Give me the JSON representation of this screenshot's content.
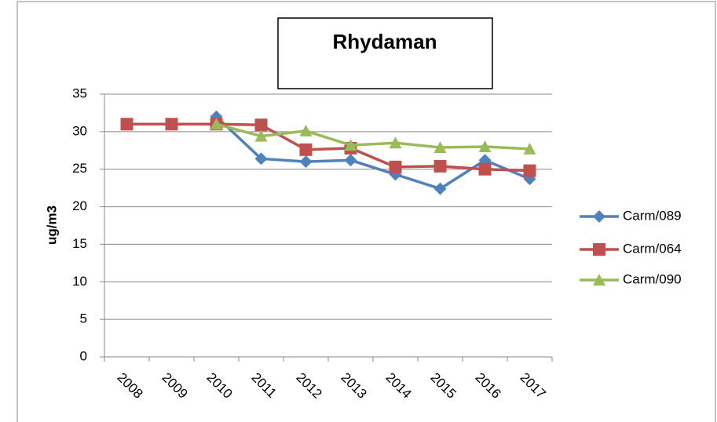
{
  "chart_data": {
    "type": "line",
    "title": "Rhydaman",
    "y_label": "ug/m3",
    "categories": [
      "2008",
      "2009",
      "2010",
      "2011",
      "2012",
      "2013",
      "2014",
      "2015",
      "2016",
      "2017"
    ],
    "series": [
      {
        "name": "Carm/089",
        "color": "#4F81BD",
        "marker": "diamond",
        "values": [
          null,
          null,
          32.0,
          26.4,
          26.0,
          26.2,
          24.3,
          22.4,
          26.2,
          23.7
        ]
      },
      {
        "name": "Carm/064",
        "color": "#C0504D",
        "marker": "square",
        "values": [
          31.0,
          31.0,
          31.0,
          30.9,
          27.6,
          27.8,
          25.3,
          25.4,
          25.0,
          24.8
        ]
      },
      {
        "name": "Carm/090",
        "color": "#9BBB59",
        "marker": "triangle",
        "values": [
          null,
          null,
          31.0,
          29.4,
          30.1,
          28.2,
          28.5,
          27.9,
          28.0,
          27.7
        ]
      }
    ],
    "ylim": [
      0,
      35
    ],
    "yticks": [
      0,
      5,
      10,
      15,
      20,
      25,
      30,
      35
    ],
    "grid": true,
    "legend": "right"
  }
}
